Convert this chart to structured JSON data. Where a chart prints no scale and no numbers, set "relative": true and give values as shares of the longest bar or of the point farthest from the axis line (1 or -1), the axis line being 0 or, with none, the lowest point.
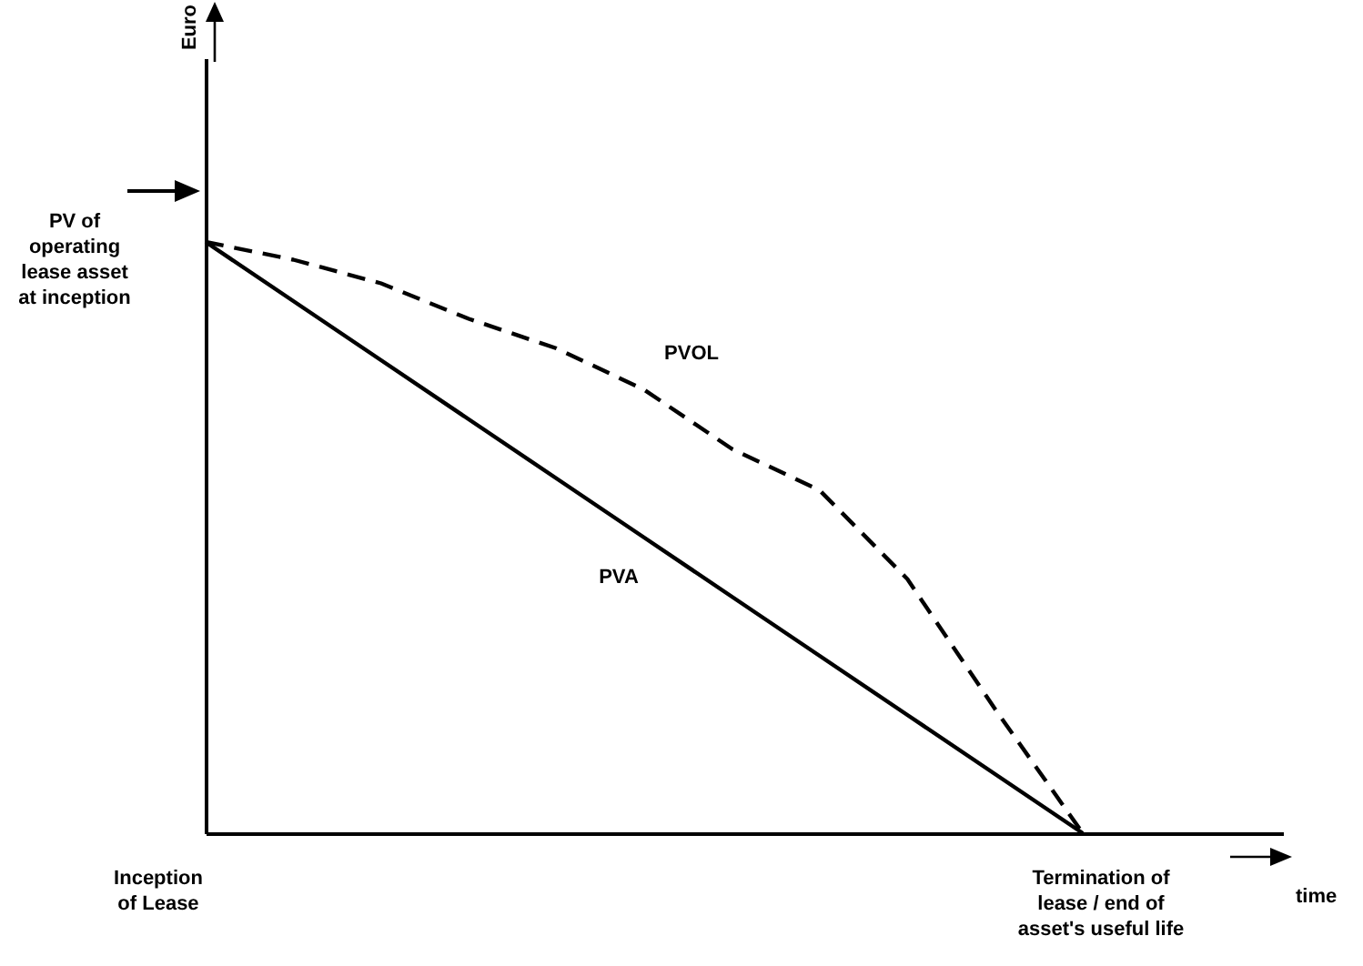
{
  "chart_data": {
    "type": "line",
    "relative": true,
    "categories": [
      null,
      null,
      null,
      null,
      null,
      null,
      null,
      null,
      null,
      null,
      null
    ],
    "series": [
      {
        "name": "PVOL",
        "color": "#000000",
        "line_style": "dashed",
        "values": [
          1,
          0.97,
          0.93,
          0.87,
          0.82,
          0.75,
          0.65,
          0.58,
          0.43,
          0.21,
          0
        ]
      },
      {
        "name": "PVA",
        "color": "#000000",
        "line_style": "solid",
        "values": [
          1,
          0.9,
          0.8,
          0.7,
          0.6,
          0.5,
          0.4,
          0.3,
          0.2,
          0.1,
          0
        ]
      }
    ],
    "annotations": [
      "Euro",
      "time",
      "PV of operating lease asset at inception",
      "Inception of Lease",
      "Termination of lease / end of asset's useful life"
    ]
  }
}
